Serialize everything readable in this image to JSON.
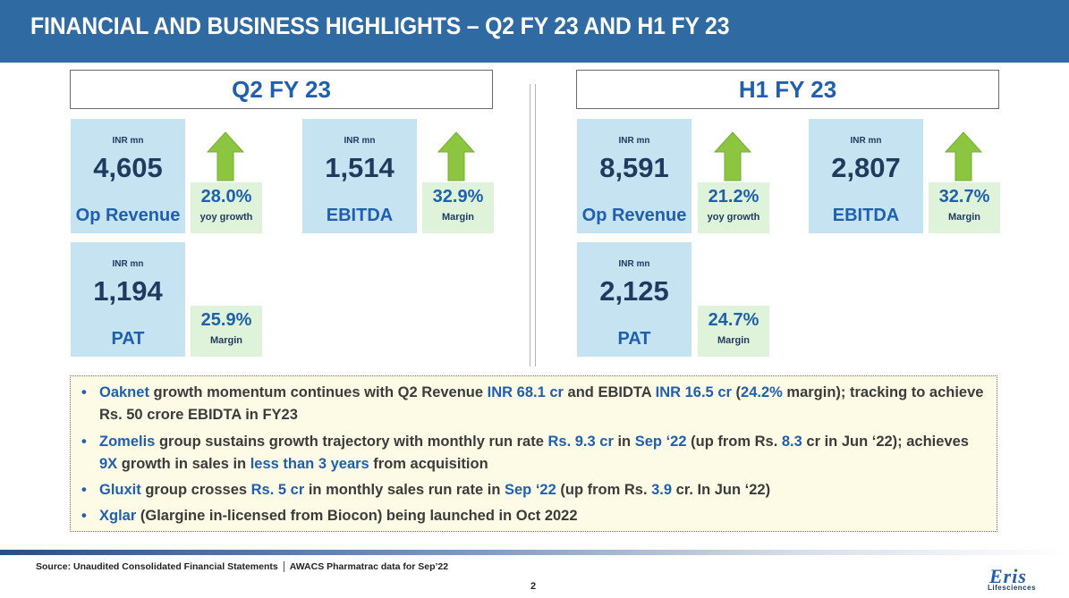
{
  "title": "FINANCIAL AND BUSINESS HIGHLIGHTS – Q2 FY 23 AND H1 FY 23",
  "q2": {
    "heading": "Q2 FY 23",
    "revenue": {
      "unit": "INR mn",
      "value": "4,605",
      "label": "Op Revenue",
      "stat": "28.0%",
      "stat_label": "yoy growth"
    },
    "ebitda": {
      "unit": "INR mn",
      "value": "1,514",
      "label": "EBITDA",
      "stat": "32.9%",
      "stat_label": "Margin"
    },
    "pat": {
      "unit": "INR mn",
      "value": "1,194",
      "label": "PAT",
      "stat": "25.9%",
      "stat_label": "Margin"
    }
  },
  "h1": {
    "heading": "H1 FY 23",
    "revenue": {
      "unit": "INR mn",
      "value": "8,591",
      "label": "Op Revenue",
      "stat": "21.2%",
      "stat_label": "yoy growth"
    },
    "ebitda": {
      "unit": "INR mn",
      "value": "2,807",
      "label": "EBITDA",
      "stat": "32.7%",
      "stat_label": "Margin"
    },
    "pat": {
      "unit": "INR mn",
      "value": "2,125",
      "label": "PAT",
      "stat": "24.7%",
      "stat_label": "Margin"
    }
  },
  "bullets": [
    {
      "dot": "•",
      "segments": [
        {
          "t": "Oaknet",
          "hl": true
        },
        {
          "t": " growth momentum continues with Q2 Revenue ",
          "hl": false
        },
        {
          "t": "INR 68.1 cr",
          "hl": true
        },
        {
          "t": " and EBIDTA ",
          "hl": false
        },
        {
          "t": "INR 16.5 cr",
          "hl": true
        },
        {
          "t": " (",
          "hl": false
        },
        {
          "t": "24.2%",
          "hl": true
        },
        {
          "t": " margin); tracking to achieve Rs. 50 crore EBIDTA in FY23",
          "hl": false
        }
      ]
    },
    {
      "dot": "•",
      "segments": [
        {
          "t": "Zomelis",
          "hl": true
        },
        {
          "t": " group sustains growth trajectory with monthly run rate ",
          "hl": false
        },
        {
          "t": "Rs. 9.3 cr",
          "hl": true
        },
        {
          "t": " in ",
          "hl": false
        },
        {
          "t": "Sep ‘22",
          "hl": true
        },
        {
          "t": " (up from Rs. ",
          "hl": false
        },
        {
          "t": "8.3",
          "hl": true
        },
        {
          "t": " cr in Jun ‘22); achieves ",
          "hl": false
        },
        {
          "t": "9X",
          "hl": true
        },
        {
          "t": " growth in sales in ",
          "hl": false
        },
        {
          "t": "less than 3 years",
          "hl": true
        },
        {
          "t": " from acquisition",
          "hl": false
        }
      ]
    },
    {
      "dot": "•",
      "segments": [
        {
          "t": "Gluxit",
          "hl": true
        },
        {
          "t": " group crosses ",
          "hl": false
        },
        {
          "t": "Rs. 5 cr",
          "hl": true
        },
        {
          "t": " in monthly sales run rate in ",
          "hl": false
        },
        {
          "t": "Sep ‘22",
          "hl": true
        },
        {
          "t": " (up from Rs. ",
          "hl": false
        },
        {
          "t": "3.9",
          "hl": true
        },
        {
          "t": " cr. In Jun ‘22)",
          "hl": false
        }
      ]
    },
    {
      "dot": "•",
      "segments": [
        {
          "t": "Xglar",
          "hl": true
        },
        {
          "t": " (Glargine in-licensed from Biocon) being launched in Oct 2022",
          "hl": false
        }
      ]
    }
  ],
  "footer": {
    "source_a": "Source: Unaudited Consolidated Financial Statements",
    "source_b": "AWACS Pharmatrac data for Sep’22",
    "page": "2",
    "logo": "Eris",
    "logo_sub": "Lifesciences"
  },
  "colors": {
    "header": "#2f6aa3",
    "accent": "#1f5fae",
    "kpi_bg": "#c5e3f1",
    "stat_bg": "#dff3da",
    "arrow": "#8cc540"
  }
}
